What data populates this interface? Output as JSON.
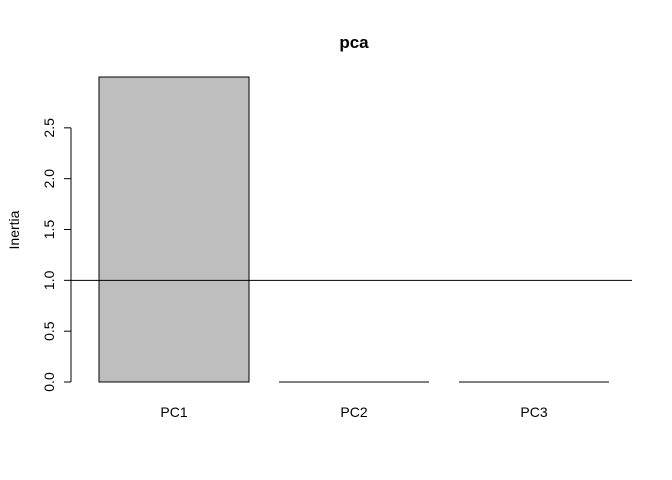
{
  "chart_data": {
    "type": "bar",
    "title": "pca",
    "xlabel": "",
    "ylabel": "Inertia",
    "categories": [
      "PC1",
      "PC2",
      "PC3"
    ],
    "values": [
      3.0,
      0.0,
      0.0
    ],
    "ylim": [
      0,
      3.0
    ],
    "yticks": [
      "0.0",
      "0.5",
      "1.0",
      "1.5",
      "2.0",
      "2.5"
    ],
    "reference_line": 1.0,
    "bar_color": "#bebebe",
    "grid": false
  }
}
